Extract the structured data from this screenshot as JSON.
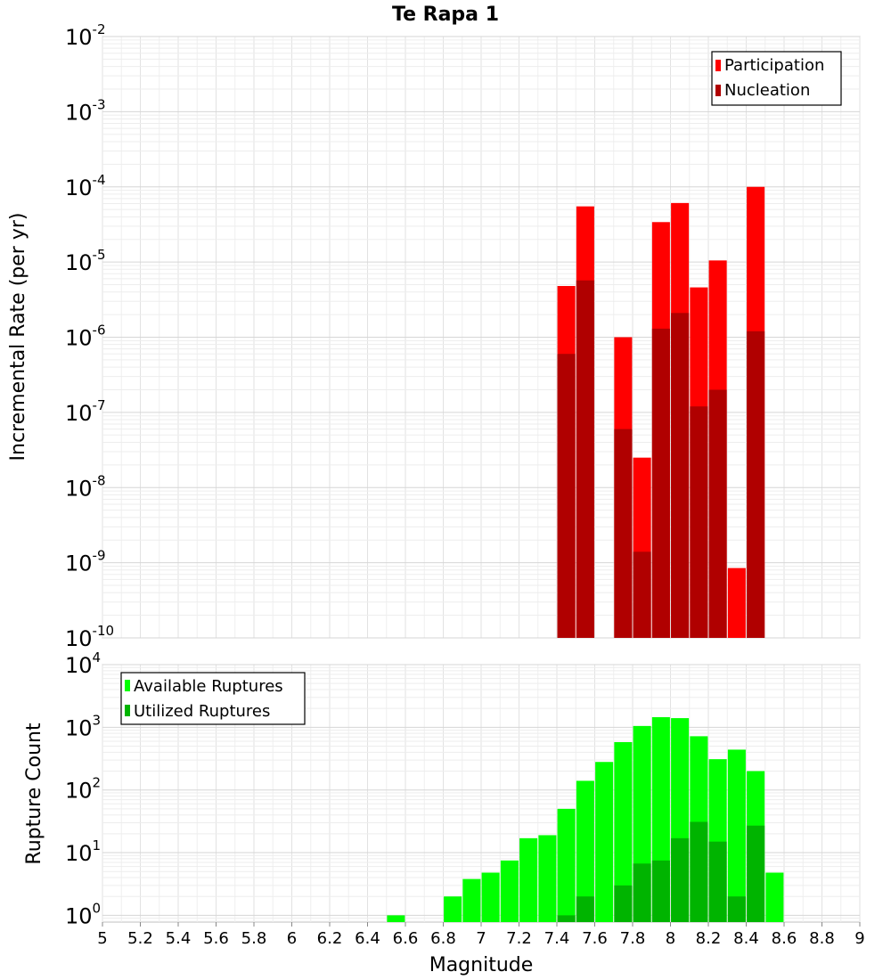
{
  "chart_data": [
    {
      "type": "bar",
      "title": "Te Rapa 1",
      "xlabel": "",
      "ylabel": "Incremental Rate (per yr)",
      "yscale": "log",
      "ylim": [
        1e-10,
        0.01
      ],
      "xlim": [
        5,
        9
      ],
      "grid": true,
      "legend_position": "top-right",
      "x": [
        7.45,
        7.55,
        7.75,
        7.85,
        7.95,
        8.05,
        8.15,
        8.25,
        8.35,
        8.45
      ],
      "series": [
        {
          "name": "Participation",
          "color": "#ff0000",
          "values": [
            4.8e-06,
            5.5e-05,
            1e-06,
            2.5e-08,
            3.4e-05,
            6.1e-05,
            4.6e-06,
            1.05e-05,
            8.5e-10,
            0.0001
          ]
        },
        {
          "name": "Nucleation",
          "color": "#b00000",
          "values": [
            6e-07,
            5.7e-06,
            6e-08,
            1.4e-09,
            1.3e-06,
            2.1e-06,
            1.2e-07,
            2e-07,
            null,
            1.2e-06
          ]
        }
      ],
      "ytick_labels": [
        {
          "base": "10",
          "exp": "-2"
        },
        {
          "base": "10",
          "exp": "-3"
        },
        {
          "base": "10",
          "exp": "-4"
        },
        {
          "base": "10",
          "exp": "-5"
        },
        {
          "base": "10",
          "exp": "-6"
        },
        {
          "base": "10",
          "exp": "-7"
        },
        {
          "base": "10",
          "exp": "-8"
        },
        {
          "base": "10",
          "exp": "-9"
        },
        {
          "base": "10",
          "exp": "-10"
        }
      ]
    },
    {
      "type": "bar",
      "title": "",
      "xlabel": "Magnitude",
      "ylabel": "Rupture Count",
      "yscale": "log",
      "ylim": [
        0.78,
        10000
      ],
      "xlim": [
        5,
        9
      ],
      "grid": true,
      "legend_position": "top-left",
      "x": [
        6.55,
        6.85,
        6.95,
        7.05,
        7.15,
        7.25,
        7.35,
        7.45,
        7.55,
        7.65,
        7.75,
        7.85,
        7.95,
        8.05,
        8.15,
        8.25,
        8.35,
        8.45,
        8.55
      ],
      "series": [
        {
          "name": "Available Ruptures",
          "color": "#00ff00",
          "values": [
            1,
            2,
            3.8,
            4.8,
            7.5,
            17,
            19,
            50,
            140,
            280,
            580,
            1050,
            1450,
            1400,
            720,
            310,
            440,
            200,
            4.8
          ]
        },
        {
          "name": "Utilized Ruptures",
          "color": "#00b400",
          "values": [
            null,
            null,
            null,
            null,
            null,
            null,
            null,
            1,
            2,
            null,
            3,
            6.7,
            7.5,
            17,
            31,
            15,
            2,
            27,
            null
          ]
        }
      ],
      "ytick_labels": [
        {
          "base": "10",
          "exp": "4"
        },
        {
          "base": "10",
          "exp": "3"
        },
        {
          "base": "10",
          "exp": "2"
        },
        {
          "base": "10",
          "exp": "1"
        },
        {
          "base": "10",
          "exp": "0"
        }
      ],
      "xtick_labels": [
        "5",
        "5.2",
        "5.4",
        "5.6",
        "5.8",
        "6",
        "6.2",
        "6.4",
        "6.6",
        "6.8",
        "7",
        "7.2",
        "7.4",
        "7.6",
        "7.8",
        "8",
        "8.2",
        "8.4",
        "8.6",
        "8.8",
        "9"
      ]
    }
  ]
}
